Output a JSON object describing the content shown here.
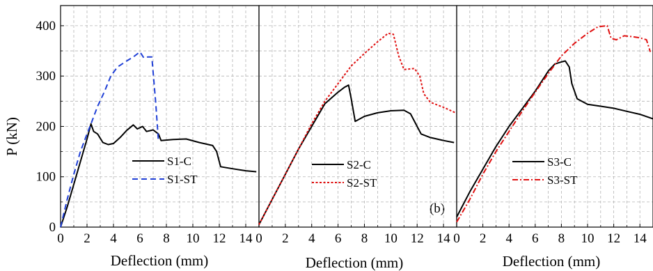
{
  "chart_data": [
    {
      "type": "line",
      "xlabel": "Deflection (mm)",
      "ylabel": "P (kN)",
      "xlim": [
        0,
        15
      ],
      "ylim": [
        0,
        440
      ],
      "x_ticks": [
        "0",
        "2",
        "4",
        "6",
        "8",
        "10",
        "12",
        "14"
      ],
      "y_ticks": [
        "0",
        "100",
        "200",
        "300",
        "400"
      ],
      "grid": true,
      "legend_position": "lower-center",
      "annotation": "",
      "series": [
        {
          "name": "S1-C",
          "color": "#000000",
          "dash": "solid",
          "points": [
            [
              0,
              0
            ],
            [
              0.5,
              40
            ],
            [
              1,
              85
            ],
            [
              1.5,
              130
            ],
            [
              2,
              175
            ],
            [
              2.3,
              205
            ],
            [
              2.5,
              190
            ],
            [
              2.8,
              185
            ],
            [
              3.2,
              168
            ],
            [
              3.6,
              164
            ],
            [
              4,
              166
            ],
            [
              4.5,
              178
            ],
            [
              5,
              192
            ],
            [
              5.5,
              203
            ],
            [
              5.8,
              195
            ],
            [
              6.2,
              200
            ],
            [
              6.5,
              190
            ],
            [
              7,
              193
            ],
            [
              7.4,
              185
            ],
            [
              7.6,
              172
            ],
            [
              8.5,
              174
            ],
            [
              9.5,
              175
            ],
            [
              10.5,
              168
            ],
            [
              11.5,
              162
            ],
            [
              11.8,
              150
            ],
            [
              12.1,
              120
            ],
            [
              13,
              116
            ],
            [
              14,
              112
            ],
            [
              14.8,
              110
            ]
          ]
        },
        {
          "name": "S1-ST",
          "color": "#1f3fd6",
          "dash": "dashed",
          "points": [
            [
              0,
              0
            ],
            [
              0.5,
              55
            ],
            [
              1,
              105
            ],
            [
              1.5,
              150
            ],
            [
              2,
              185
            ],
            [
              2.3,
              205
            ],
            [
              2.8,
              240
            ],
            [
              3.3,
              268
            ],
            [
              3.8,
              300
            ],
            [
              4.3,
              318
            ],
            [
              5,
              330
            ],
            [
              5.5,
              338
            ],
            [
              6,
              348
            ],
            [
              6.3,
              336
            ],
            [
              6.6,
              338
            ],
            [
              6.9,
              338
            ],
            [
              7.2,
              245
            ],
            [
              7.4,
              170
            ]
          ]
        }
      ]
    },
    {
      "type": "line",
      "xlabel": "Deflection (mm)",
      "xlim": [
        0,
        15
      ],
      "ylim": [
        0,
        440
      ],
      "x_ticks": [
        "0",
        "2",
        "4",
        "6",
        "8",
        "10",
        "12",
        "14"
      ],
      "grid": true,
      "legend_position": "lower-center",
      "annotation": "",
      "series": [
        {
          "name": "S2-C",
          "color": "#000000",
          "dash": "solid",
          "points": [
            [
              0,
              5
            ],
            [
              1,
              55
            ],
            [
              2,
              105
            ],
            [
              3,
              155
            ],
            [
              4,
              200
            ],
            [
              5,
              245
            ],
            [
              6,
              268
            ],
            [
              6.5,
              278
            ],
            [
              6.8,
              282
            ],
            [
              7,
              255
            ],
            [
              7.3,
              210
            ],
            [
              8,
              220
            ],
            [
              9,
              227
            ],
            [
              10,
              231
            ],
            [
              11,
              232
            ],
            [
              11.5,
              225
            ],
            [
              12,
              200
            ],
            [
              12.3,
              185
            ],
            [
              13,
              178
            ],
            [
              14,
              172
            ],
            [
              14.8,
              168
            ]
          ]
        },
        {
          "name": "S2-ST",
          "color": "#e01010",
          "dash": "dotted",
          "points": [
            [
              0,
              5
            ],
            [
              1,
              55
            ],
            [
              2,
              105
            ],
            [
              3,
              155
            ],
            [
              4,
              205
            ],
            [
              5,
              250
            ],
            [
              6,
              285
            ],
            [
              7,
              320
            ],
            [
              8,
              345
            ],
            [
              9,
              368
            ],
            [
              9.8,
              385
            ],
            [
              10.2,
              383
            ],
            [
              10.6,
              340
            ],
            [
              11,
              313
            ],
            [
              11.8,
              315
            ],
            [
              12.2,
              300
            ],
            [
              12.5,
              265
            ],
            [
              13,
              248
            ],
            [
              14,
              238
            ],
            [
              15,
              226
            ]
          ]
        }
      ]
    },
    {
      "type": "line",
      "xlabel": "Deflection (mm)",
      "xlim": [
        0,
        15
      ],
      "ylim": [
        0,
        440
      ],
      "x_ticks": [
        "0",
        "2",
        "4",
        "6",
        "8",
        "10",
        "12",
        "14"
      ],
      "grid": true,
      "legend_position": "lower-center",
      "annotation": "(b)",
      "series": [
        {
          "name": "S3-C",
          "color": "#000000",
          "dash": "solid",
          "points": [
            [
              0,
              20
            ],
            [
              1,
              70
            ],
            [
              2,
              115
            ],
            [
              3,
              160
            ],
            [
              4,
              200
            ],
            [
              5,
              235
            ],
            [
              6,
              270
            ],
            [
              7,
              310
            ],
            [
              7.5,
              324
            ],
            [
              8,
              328
            ],
            [
              8.3,
              330
            ],
            [
              8.6,
              318
            ],
            [
              8.8,
              285
            ],
            [
              9.2,
              255
            ],
            [
              10,
              244
            ],
            [
              11,
              240
            ],
            [
              12,
              236
            ],
            [
              13,
              230
            ],
            [
              14,
              224
            ],
            [
              15,
              215
            ]
          ]
        },
        {
          "name": "S3-ST",
          "color": "#e01010",
          "dash": "dashdot",
          "points": [
            [
              0,
              10
            ],
            [
              1,
              55
            ],
            [
              2,
              105
            ],
            [
              3,
              150
            ],
            [
              4,
              190
            ],
            [
              5,
              230
            ],
            [
              6,
              268
            ],
            [
              7,
              305
            ],
            [
              8,
              340
            ],
            [
              9,
              365
            ],
            [
              10,
              385
            ],
            [
              10.8,
              398
            ],
            [
              11.5,
              400
            ],
            [
              11.8,
              375
            ],
            [
              12.2,
              372
            ],
            [
              12.8,
              380
            ],
            [
              13.5,
              378
            ],
            [
              14,
              376
            ],
            [
              14.5,
              372
            ],
            [
              14.8,
              348
            ]
          ]
        }
      ]
    }
  ]
}
